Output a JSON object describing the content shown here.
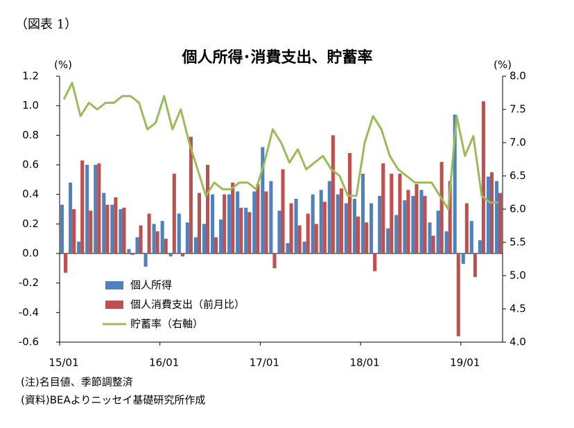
{
  "chart_data": {
    "type": "bar_line",
    "figure_label": "（図表 1）",
    "title": "個人所得･消費支出、貯蓄率",
    "ylabel": "(%)",
    "y2label": "(%)",
    "notes": [
      "(注)名目値、季節調整済",
      "(資料)BEAよりニッセイ基礎研究所作成"
    ],
    "categories": [
      "15/01",
      null,
      null,
      null,
      null,
      null,
      null,
      null,
      null,
      null,
      null,
      null,
      "16/01",
      null,
      null,
      null,
      null,
      null,
      null,
      null,
      null,
      null,
      null,
      null,
      "17/01",
      null,
      null,
      null,
      null,
      null,
      null,
      null,
      null,
      null,
      null,
      null,
      "18/01",
      null,
      null,
      null,
      null,
      null,
      null,
      null,
      null,
      null,
      null,
      null,
      "19/01",
      null,
      null,
      null,
      null
    ],
    "series": [
      {
        "name": "個人所得",
        "color": "#4f81bd",
        "type": "bar",
        "values": [
          0.33,
          0.48,
          0.08,
          0.6,
          0.6,
          0.41,
          0.33,
          0.3,
          0.03,
          0.11,
          -0.09,
          0.2,
          0.22,
          -0.02,
          0.27,
          0.21,
          0.11,
          0.2,
          0.4,
          0.23,
          0.4,
          0.42,
          0.31,
          0.42,
          0.72,
          0.49,
          0.29,
          0.07,
          0.37,
          0.08,
          0.4,
          0.43,
          0.49,
          0.4,
          0.34,
          0.37,
          0.54,
          0.34,
          0.39,
          0.17,
          0.26,
          0.36,
          0.39,
          0.43,
          0.21,
          0.29,
          0.15,
          0.94,
          -0.07,
          0.22,
          0.09,
          0.52,
          0.49
        ]
      },
      {
        "name": "個人消費支出（前月比）",
        "color": "#c0504d",
        "type": "bar",
        "values": [
          -0.13,
          0.3,
          0.63,
          0.29,
          0.61,
          0.33,
          0.38,
          0.31,
          -0.01,
          0.19,
          0.27,
          0.15,
          0.1,
          0.54,
          -0.02,
          0.79,
          0.41,
          0.6,
          0.11,
          0.4,
          0.48,
          0.31,
          0.28,
          0.47,
          0.42,
          -0.1,
          0.57,
          0.34,
          0.19,
          0.27,
          0.2,
          0.35,
          0.8,
          0.44,
          0.68,
          0.25,
          0.21,
          -0.12,
          0.61,
          0.54,
          0.54,
          0.43,
          0.47,
          0.39,
          0.12,
          0.62,
          0.49,
          -0.56,
          0.34,
          -0.16,
          1.03,
          0.55,
          0.41
        ]
      },
      {
        "name": "貯蓄率（右軸）",
        "color": "#9bbb59",
        "type": "line",
        "axis": "y2",
        "values": [
          7.65,
          7.9,
          7.4,
          7.6,
          7.5,
          7.6,
          7.6,
          7.7,
          7.7,
          7.6,
          7.2,
          7.3,
          7.7,
          7.2,
          7.5,
          7.0,
          6.6,
          6.2,
          6.4,
          6.3,
          6.3,
          6.4,
          6.4,
          6.3,
          6.7,
          7.2,
          7.0,
          6.7,
          6.9,
          6.6,
          6.7,
          6.8,
          6.6,
          6.5,
          6.2,
          6.2,
          7.0,
          7.4,
          7.2,
          6.8,
          6.6,
          6.5,
          6.4,
          6.4,
          6.4,
          6.2,
          6.0,
          7.4,
          6.8,
          7.1,
          6.2,
          6.1,
          6.1
        ]
      }
    ],
    "ylim": [
      -0.6,
      1.2
    ],
    "yticks": [
      -0.6,
      -0.4,
      -0.2,
      {
        "value": 0,
        "label": "0.0"
      },
      0.2,
      0.4,
      0.6,
      0.8,
      {
        "value": 1,
        "label": "1.0"
      },
      1.2
    ],
    "y2lim": [
      4.0,
      8.0
    ],
    "y2ticks": [
      {
        "value": 4,
        "label": "4.0"
      },
      4.5,
      {
        "value": 5,
        "label": "5.0"
      },
      5.5,
      {
        "value": 6,
        "label": "6.0"
      },
      6.5,
      {
        "value": 7,
        "label": "7.0"
      },
      7.5,
      {
        "value": 8,
        "label": "8.0"
      }
    ],
    "legend": "lower-left"
  }
}
